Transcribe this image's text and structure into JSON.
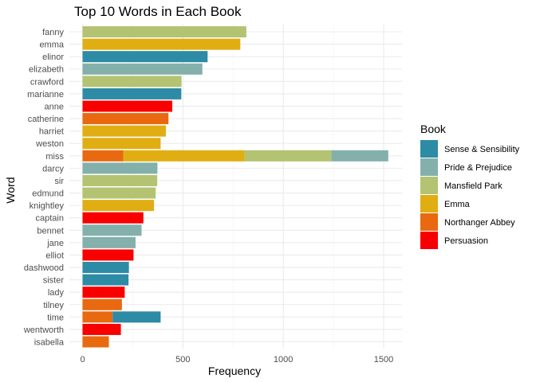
{
  "chart_data": {
    "type": "bar",
    "orientation": "horizontal",
    "stacked": true,
    "title": "Top 10 Words in Each Book",
    "xlabel": "Frequency",
    "ylabel": "Word",
    "xlim": [
      0,
      1600
    ],
    "x_ticks": [
      0,
      500,
      1000,
      1500
    ],
    "x_tick_labels": [
      "0",
      "500",
      "1000",
      "1500"
    ],
    "grid": true,
    "legend_position": "right",
    "legend_title": "Book",
    "categories": [
      "fanny",
      "emma",
      "elinor",
      "elizabeth",
      "crawford",
      "marianne",
      "anne",
      "catherine",
      "harriet",
      "weston",
      "miss",
      "darcy",
      "sir",
      "edmund",
      "knightley",
      "captain",
      "bennet",
      "jane",
      "elliot",
      "dashwood",
      "sister",
      "lady",
      "tilney",
      "time",
      "wentworth",
      "isabella"
    ],
    "series": [
      {
        "name": "Sense & Sensibility",
        "color": "#2e8ba6",
        "values": [
          0,
          0,
          623,
          0,
          0,
          492,
          0,
          0,
          0,
          0,
          0,
          0,
          0,
          0,
          0,
          0,
          0,
          0,
          0,
          231,
          229,
          0,
          0,
          239,
          0,
          0
        ]
      },
      {
        "name": "Pride & Prejudice",
        "color": "#84b0ab",
        "values": [
          0,
          0,
          0,
          597,
          0,
          0,
          0,
          0,
          0,
          0,
          283,
          373,
          0,
          0,
          0,
          0,
          294,
          264,
          0,
          0,
          0,
          0,
          0,
          0,
          0,
          0
        ]
      },
      {
        "name": "Mansfield Park",
        "color": "#b3c372",
        "values": [
          816,
          0,
          0,
          0,
          493,
          0,
          0,
          0,
          0,
          0,
          432,
          0,
          372,
          364,
          0,
          0,
          0,
          0,
          0,
          0,
          0,
          0,
          0,
          0,
          0,
          0
        ]
      },
      {
        "name": "Emma",
        "color": "#e0ae12",
        "values": [
          0,
          786,
          0,
          0,
          0,
          0,
          0,
          0,
          415,
          389,
          605,
          0,
          0,
          0,
          356,
          0,
          0,
          0,
          0,
          0,
          0,
          0,
          0,
          0,
          0,
          0
        ]
      },
      {
        "name": "Northanger Abbey",
        "color": "#e8690f",
        "values": [
          0,
          0,
          0,
          0,
          0,
          0,
          0,
          428,
          0,
          0,
          203,
          0,
          0,
          0,
          0,
          0,
          0,
          0,
          0,
          0,
          0,
          0,
          196,
          150,
          0,
          131
        ]
      },
      {
        "name": "Persuasion",
        "color": "#f80000",
        "values": [
          0,
          0,
          0,
          0,
          0,
          0,
          447,
          0,
          0,
          0,
          0,
          0,
          0,
          0,
          0,
          303,
          0,
          0,
          254,
          0,
          0,
          210,
          0,
          0,
          191,
          0
        ]
      }
    ],
    "stack_order": [
      "Northanger Abbey",
      "Emma",
      "Mansfield Park",
      "Pride & Prejudice",
      "Sense & Sensibility",
      "Persuasion"
    ]
  }
}
